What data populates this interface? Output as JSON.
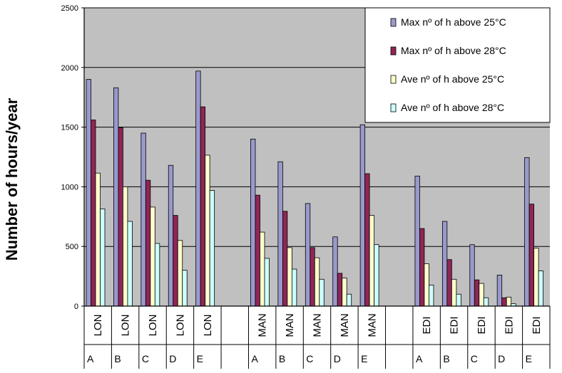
{
  "chart_data": {
    "type": "bar",
    "ylabel": "Number of hours/year",
    "ylim": [
      0,
      2500
    ],
    "yticks": [
      0,
      500,
      1000,
      1500,
      2000,
      2500
    ],
    "grid": true,
    "legend_position": "top-right",
    "groups": [
      {
        "city": "LON",
        "letter": "A"
      },
      {
        "city": "LON",
        "letter": "B"
      },
      {
        "city": "LON",
        "letter": "C"
      },
      {
        "city": "LON",
        "letter": "D"
      },
      {
        "city": "LON",
        "letter": "E"
      },
      {
        "city": "MAN",
        "letter": "A"
      },
      {
        "city": "MAN",
        "letter": "B"
      },
      {
        "city": "MAN",
        "letter": "C"
      },
      {
        "city": "MAN",
        "letter": "D"
      },
      {
        "city": "MAN",
        "letter": "E"
      },
      {
        "city": "EDI",
        "letter": "A"
      },
      {
        "city": "EDI",
        "letter": "B"
      },
      {
        "city": "EDI",
        "letter": "C"
      },
      {
        "city": "EDI",
        "letter": "D"
      },
      {
        "city": "EDI",
        "letter": "E"
      }
    ],
    "series": [
      {
        "name": "Max nº of h above 25°C",
        "color": "#9999cc",
        "values": [
          1900,
          1830,
          1450,
          1180,
          1970,
          1400,
          1210,
          860,
          580,
          1520,
          1090,
          710,
          515,
          260,
          1245
        ]
      },
      {
        "name": "Max nº of h above 28°C",
        "color": "#8f2655",
        "values": [
          1560,
          1495,
          1055,
          760,
          1670,
          930,
          795,
          490,
          275,
          1110,
          650,
          390,
          220,
          70,
          855
        ]
      },
      {
        "name": "Ave nº of h above 25°C",
        "color": "#ffffcc",
        "values": [
          1115,
          1000,
          830,
          550,
          1265,
          620,
          490,
          405,
          235,
          760,
          355,
          225,
          190,
          75,
          485
        ]
      },
      {
        "name": "Ave nº of h above 28°C",
        "color": "#ccffff",
        "values": [
          815,
          710,
          525,
          300,
          970,
          400,
          310,
          225,
          100,
          515,
          175,
          100,
          70,
          20,
          295
        ]
      }
    ]
  }
}
